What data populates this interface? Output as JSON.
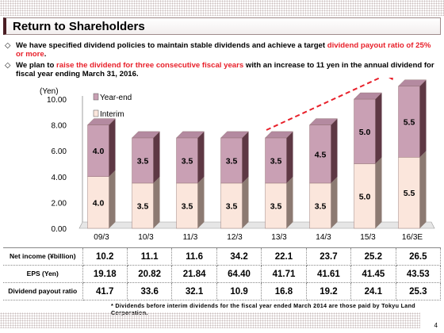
{
  "header": {
    "title": "Return to Shareholders"
  },
  "bullets": [
    {
      "pre": "We have specified dividend policies to maintain stable dividends and achieve a target ",
      "highlight": "dividend payout ratio of 25% or more",
      "post": "."
    },
    {
      "pre": "We plan to ",
      "highlight": "raise the dividend for three consecutive fiscal years",
      "post": " with an increase to 11 yen in the annual dividend for fiscal year ending March 31, 2016."
    }
  ],
  "colors": {
    "year_end": "#c9a0b4",
    "interim": "#fbe6dc",
    "accent_red": "#e8202a",
    "title_accent": "#4a1e24"
  },
  "chart_data": {
    "type": "bar",
    "stacked": true,
    "ylabel": "(Yen)",
    "ylim": [
      0,
      10
    ],
    "yticks": [
      "0.00",
      "2.00",
      "4.00",
      "6.00",
      "8.00",
      "10.00"
    ],
    "categories": [
      "09/3",
      "10/3",
      "11/3",
      "12/3",
      "13/3",
      "14/3",
      "15/3",
      "16/3E"
    ],
    "series": [
      {
        "name": "Interim",
        "values": [
          4.0,
          3.5,
          3.5,
          3.5,
          3.5,
          3.5,
          5.0,
          5.5
        ],
        "labels": [
          "4.0",
          "3.5",
          "3.5",
          "3.5",
          "3.5",
          "3.5",
          "5.0",
          "5.5"
        ]
      },
      {
        "name": "Year-end",
        "values": [
          4.0,
          3.5,
          3.5,
          3.5,
          3.5,
          4.5,
          5.0,
          5.5
        ],
        "labels": [
          "4.0",
          "3.5",
          "3.5",
          "3.5",
          "3.5",
          "4.5",
          "5.0",
          "5.5"
        ]
      }
    ],
    "legend": "top-left",
    "annotation": "dashed upward trend arrow"
  },
  "table": {
    "rows": [
      {
        "label": "Net income (¥billion)",
        "values": [
          "10.2",
          "11.1",
          "11.6",
          "34.2",
          "22.1",
          "23.7",
          "25.2",
          "26.5"
        ]
      },
      {
        "label": "EPS (Yen)",
        "values": [
          "19.18",
          "20.82",
          "21.84",
          "64.40",
          "41.71",
          "41.61",
          "41.45",
          "43.53"
        ]
      },
      {
        "label": "Dividend payout ratio",
        "values": [
          "41.7",
          "33.6",
          "32.1",
          "10.9",
          "16.8",
          "19.2",
          "24.1",
          "25.3"
        ]
      }
    ]
  },
  "footnote": "* Dividends before interim dividends for the fiscal year ended March 2014 are those paid by Tokyu Land Corporation.",
  "page_number": "4"
}
